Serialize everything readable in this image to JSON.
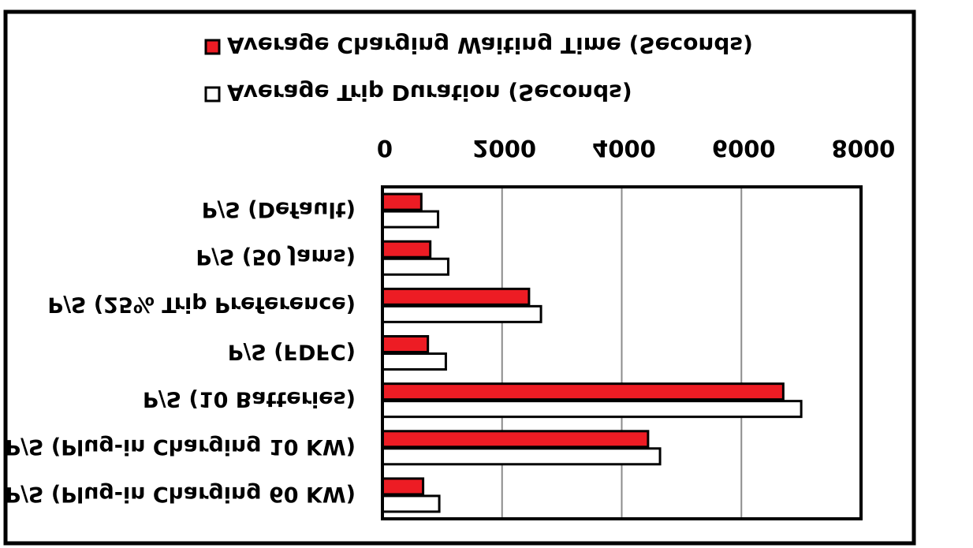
{
  "chart_data": {
    "type": "bar",
    "orientation": "horizontal",
    "rendered_mirrored_vertically": true,
    "categories": [
      "P/S (Default)",
      "P/S (50 Jams)",
      "P/S (25% Trip Preference)",
      "P/S (FDFC)",
      "P/S (10 Batteries)",
      "P/S (Plug-in Charging 10 KW)",
      "P/S (Plug-in Charging 60 KW)"
    ],
    "series": [
      {
        "name": "Average Charging Waiting Time (Seconds)",
        "color": "#ed1c24",
        "values": [
          650,
          800,
          2450,
          760,
          6700,
          4440,
          680
        ]
      },
      {
        "name": "Average Trip Duration (Seconds)",
        "color": "#ffffff",
        "values": [
          930,
          1100,
          2650,
          1060,
          7000,
          4640,
          950
        ]
      }
    ],
    "xlim": [
      0,
      8000
    ],
    "xticks": [
      "0",
      "2000",
      "4000",
      "6000",
      "8000"
    ],
    "grid": true,
    "legend_position": "top"
  }
}
